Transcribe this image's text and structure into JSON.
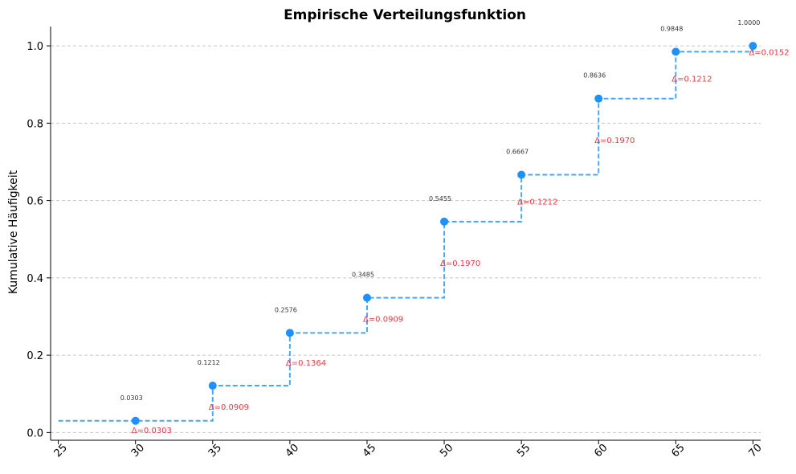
{
  "chart_data": {
    "type": "line",
    "subtype": "step",
    "title": "Empirische Verteilungsfunktion",
    "xlabel": "",
    "ylabel": "Kumulative Häufigkeit",
    "xlim": [
      24.5,
      70.5
    ],
    "ylim": [
      -0.02,
      1.05
    ],
    "x_ticks": [
      25,
      30,
      35,
      40,
      45,
      50,
      55,
      60,
      65,
      70
    ],
    "y_ticks": [
      0.0,
      0.2,
      0.4,
      0.6,
      0.8,
      1.0
    ],
    "y_tick_labels": [
      "0.0",
      "0.2",
      "0.4",
      "0.6",
      "0.8",
      "1.0"
    ],
    "grid": "y-dashed",
    "step_start": {
      "x": 25,
      "y": 0.0303
    },
    "x": [
      30,
      35,
      40,
      45,
      50,
      55,
      60,
      65,
      70
    ],
    "y": [
      0.0303,
      0.1212,
      0.2576,
      0.3485,
      0.5455,
      0.6667,
      0.8636,
      0.9848,
      1.0
    ],
    "value_labels": [
      "0.0303",
      "0.1212",
      "0.2576",
      "0.3485",
      "0.5455",
      "0.6667",
      "0.8636",
      "0.9848",
      "1.0000"
    ],
    "delta_labels": [
      "Δ=0.0303",
      "Δ=0.0909",
      "Δ=0.1364",
      "Δ=0.0909",
      "Δ=0.1970",
      "Δ=0.1212",
      "Δ=0.1970",
      "Δ=0.1212",
      "Δ=0.0152"
    ],
    "colors": {
      "line": "#4da6ef",
      "marker": "#1e90ff",
      "delta": "#e8383d",
      "value": "#333333"
    }
  }
}
